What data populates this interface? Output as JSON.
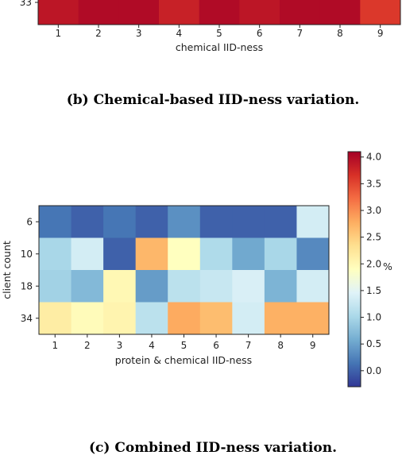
{
  "chart_data": [
    {
      "type": "heatmap",
      "caption": "(b) Chemical-based IID-ness variation.",
      "xlabel": "chemical IID-ness",
      "categories": [
        "1",
        "2",
        "3",
        "4",
        "5",
        "6",
        "7",
        "8",
        "9"
      ],
      "rows": [
        "33"
      ],
      "values": [
        [
          3.9,
          4.0,
          4.0,
          3.8,
          4.0,
          3.9,
          4.0,
          4.0,
          3.6
        ]
      ]
    },
    {
      "type": "heatmap",
      "caption": "(c) Combined IID-ness variation.",
      "xlabel": "protein & chemical IID-ness",
      "ylabel": "client count",
      "categories": [
        "1",
        "2",
        "3",
        "4",
        "5",
        "6",
        "7",
        "8",
        "9"
      ],
      "rows": [
        "6",
        "10",
        "18",
        "34"
      ],
      "values": [
        [
          0.15,
          0.0,
          0.15,
          0.0,
          0.35,
          0.0,
          0.0,
          0.0,
          1.35
        ],
        [
          1.0,
          1.35,
          0.0,
          2.7,
          1.9,
          1.05,
          0.55,
          1.0,
          0.3
        ],
        [
          0.95,
          0.7,
          2.0,
          0.45,
          1.15,
          1.25,
          1.4,
          0.65,
          1.35
        ],
        [
          2.15,
          1.95,
          2.05,
          1.15,
          2.8,
          2.65,
          1.35,
          2.75,
          2.75
        ]
      ],
      "colorbar": {
        "ticks": [
          "0.0",
          "0.5",
          "1.0",
          "1.5",
          "2.0",
          "2.5",
          "3.0",
          "3.5",
          "4.0"
        ],
        "label": "%",
        "range": [
          -0.3,
          4.1
        ],
        "colormap": "RdYlBu_r"
      }
    }
  ]
}
